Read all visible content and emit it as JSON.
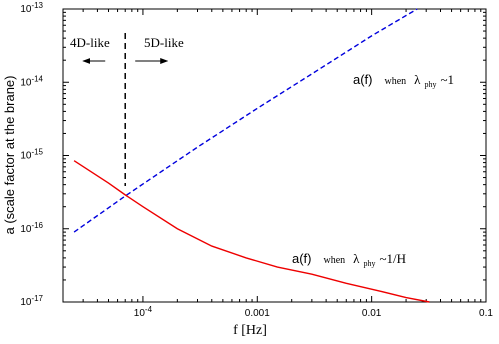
{
  "chart_data": {
    "type": "line",
    "xscale": "log",
    "yscale": "log",
    "xlim": [
      2e-05,
      0.1
    ],
    "ylim": [
      1e-17,
      1e-13
    ],
    "xlabel": "f [Hz]",
    "ylabel": "a  (scale factor at the brane)",
    "x_ticks": [
      {
        "value": 0.0001,
        "label": "10",
        "exp": "-4"
      },
      {
        "value": 0.001,
        "label": "0.001"
      },
      {
        "value": 0.01,
        "label": "0.01"
      },
      {
        "value": 0.1,
        "label": "0.1"
      }
    ],
    "y_ticks": [
      {
        "value": 1e-17,
        "label": "10",
        "exp": "-17"
      },
      {
        "value": 1e-16,
        "label": "10",
        "exp": "-16"
      },
      {
        "value": 1e-15,
        "label": "10",
        "exp": "-15"
      },
      {
        "value": 1e-14,
        "label": "10",
        "exp": "-14"
      },
      {
        "value": 1e-13,
        "label": "10",
        "exp": "-13"
      }
    ],
    "series": [
      {
        "color": "#0000dd",
        "style": "dashed",
        "points": [
          [
            2.5e-05,
            9e-17
          ],
          [
            7e-05,
            2.8e-16
          ],
          [
            0.0003,
            1.3e-15
          ],
          [
            0.001,
            4.4e-15
          ],
          [
            0.003,
            1.3e-14
          ],
          [
            0.01,
            4.3e-14
          ],
          [
            0.025,
            1e-13
          ]
        ]
      },
      {
        "color": "#ee0000",
        "style": "solid",
        "points": [
          [
            2.5e-05,
            8.5e-16
          ],
          [
            5e-05,
            4.2e-16
          ],
          [
            7e-05,
            2.9e-16
          ],
          [
            0.0001,
            2e-16
          ],
          [
            0.0002,
            1e-16
          ],
          [
            0.0004,
            5.8e-17
          ],
          [
            0.0008,
            4e-17
          ],
          [
            0.0015,
            3e-17
          ],
          [
            0.003,
            2.4e-17
          ],
          [
            0.006,
            1.8e-17
          ],
          [
            0.012,
            1.4e-17
          ],
          [
            0.02,
            1.15e-17
          ],
          [
            0.032,
            1e-17
          ]
        ]
      }
    ],
    "annotations": {
      "divider_x": 7e-05,
      "left_label": "4D-like",
      "right_label": "5D-like",
      "upper_curve_label": {
        "main": "a(f)",
        "when": "when",
        "lambda": "λ",
        "sub": "phy",
        "rest": "~1"
      },
      "lower_curve_label": {
        "main": "a(f)",
        "when": "when",
        "lambda": "λ",
        "sub": "phy",
        "rest": "~1/H"
      }
    }
  }
}
